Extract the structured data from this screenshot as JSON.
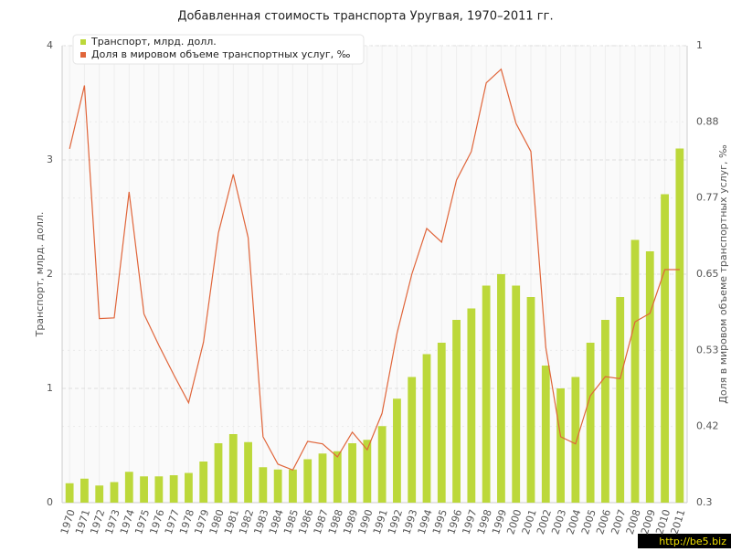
{
  "chart_data": {
    "type": "bar-line",
    "title": "Добавленная стоимость транспорта Уругвая, 1970–2011 гг.",
    "y_label": "Транспорт, млрд. долл.",
    "y2_label": "Доля в мировом объеме транспортных услуг, ‰",
    "watermark": "http://be5.biz",
    "categories": [
      "1970",
      "1971",
      "1972",
      "1973",
      "1974",
      "1975",
      "1976",
      "1977",
      "1978",
      "1979",
      "1980",
      "1981",
      "1982",
      "1983",
      "1984",
      "1985",
      "1986",
      "1987",
      "1988",
      "1989",
      "1990",
      "1991",
      "1992",
      "1993",
      "1994",
      "1995",
      "1996",
      "1997",
      "1998",
      "1999",
      "2000",
      "2001",
      "2002",
      "2003",
      "2004",
      "2005",
      "2006",
      "2007",
      "2008",
      "2009",
      "2010",
      "2011"
    ],
    "series": [
      {
        "name": "Транспорт, млрд. долл.",
        "type": "bar",
        "color": "#bcd83a",
        "values": [
          0.17,
          0.21,
          0.15,
          0.18,
          0.27,
          0.23,
          0.23,
          0.24,
          0.26,
          0.36,
          0.52,
          0.6,
          0.53,
          0.31,
          0.29,
          0.29,
          0.38,
          0.43,
          0.45,
          0.52,
          0.55,
          0.67,
          0.91,
          1.1,
          1.3,
          1.4,
          1.6,
          1.7,
          1.9,
          2.0,
          1.9,
          1.8,
          1.2,
          1.0,
          1.1,
          1.4,
          1.6,
          1.8,
          2.3,
          2.2,
          2.7,
          3.1
        ]
      },
      {
        "name": "Доля в мировом объеме транспортных услуг, ‰",
        "type": "line",
        "axis": "y2",
        "color": "#e0653a",
        "values": [
          0.842,
          0.939,
          0.582,
          0.583,
          0.776,
          0.589,
          0.541,
          0.496,
          0.453,
          0.546,
          0.713,
          0.803,
          0.706,
          0.401,
          0.359,
          0.35,
          0.394,
          0.39,
          0.37,
          0.408,
          0.381,
          0.437,
          0.559,
          0.65,
          0.72,
          0.699,
          0.794,
          0.838,
          0.943,
          0.964,
          0.881,
          0.838,
          0.538,
          0.401,
          0.39,
          0.464,
          0.493,
          0.49,
          0.577,
          0.59,
          0.657,
          0.657
        ]
      }
    ],
    "ylim": [
      0,
      4
    ],
    "yticks": [
      0,
      1,
      2,
      3,
      4
    ],
    "y2lim": [
      0.3,
      1
    ],
    "y2ticks": [
      0.3,
      {
        "value": 0.41667,
        "label": "0.42"
      },
      {
        "value": 0.53333,
        "label": "0.53"
      },
      0.65,
      {
        "value": 0.76667,
        "label": "0.77"
      },
      {
        "value": 0.88333,
        "label": "0.88"
      },
      1
    ],
    "grid": true,
    "legend": "top-left"
  }
}
